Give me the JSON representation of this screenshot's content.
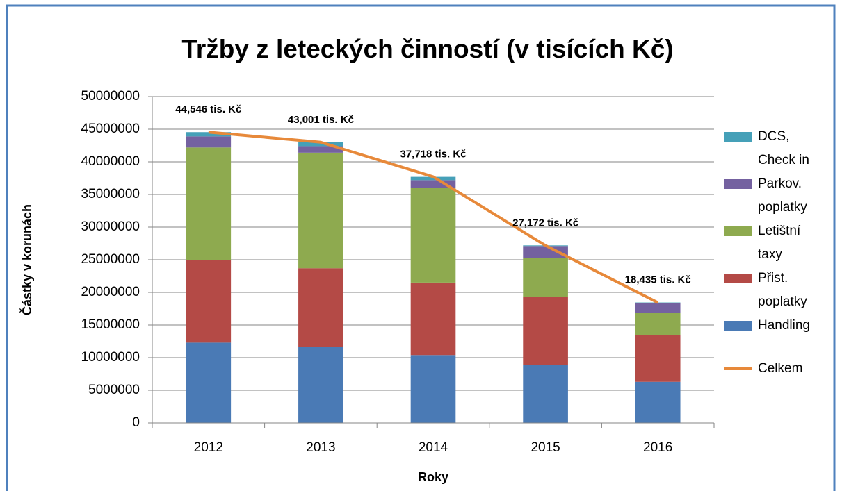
{
  "chart_data": {
    "type": "bar",
    "stacked": true,
    "title": "Tržby z leteckých činností (v tisících Kč)",
    "x_label": "Roky",
    "y_label": "Částky v korunách",
    "categories": [
      "2012",
      "2013",
      "2014",
      "2015",
      "2016"
    ],
    "series": [
      {
        "name": "Handling",
        "color": "#4a7ab5",
        "values": [
          12300000,
          11700000,
          10400000,
          8900000,
          6300000
        ]
      },
      {
        "name": "Přist. poplatky",
        "color": "#b44a46",
        "values": [
          12600000,
          12000000,
          11100000,
          10400000,
          7200000
        ]
      },
      {
        "name": "Letištní taxy",
        "color": "#8eaa4f",
        "values": [
          17300000,
          17700000,
          14500000,
          6000000,
          3400000
        ]
      },
      {
        "name": "Parkov. poplatky",
        "color": "#7461a0",
        "values": [
          1700000,
          1000000,
          1200000,
          1800000,
          1500000
        ]
      },
      {
        "name": "DCS, Check in",
        "color": "#45a0b8",
        "values": [
          650000,
          600000,
          500000,
          100000,
          50000
        ]
      },
      {
        "name": "Celkem",
        "type": "line",
        "color": "#e7893a",
        "values": [
          44546000,
          43001000,
          37718000,
          27172000,
          18435000
        ],
        "value_labels": [
          "44,546 tis. Kč",
          "43,001 tis. Kč",
          "37,718 tis. Kč",
          "27,172 tis. Kč",
          "18,435 tis. Kč"
        ]
      }
    ],
    "ylim": [
      0,
      50000000
    ],
    "yticks": [
      0,
      5000000,
      10000000,
      15000000,
      20000000,
      25000000,
      30000000,
      35000000,
      40000000,
      45000000,
      50000000
    ],
    "grid": true,
    "legend": "right"
  }
}
